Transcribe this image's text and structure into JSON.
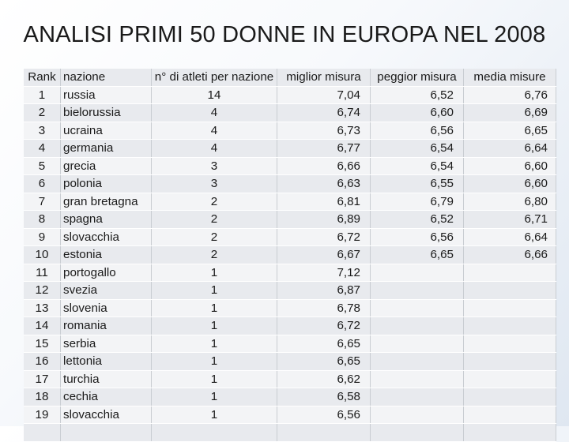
{
  "title": "ANALISI PRIMI 50 DONNE IN EUROPA NEL 2008",
  "headers": {
    "rank": "Rank",
    "nazione": "nazione",
    "n_atleti": "n° di atleti per nazione",
    "miglior": "miglior misura",
    "peggior": "peggior misura",
    "media": "media misure"
  },
  "rows": [
    {
      "rank": "1",
      "nazione": "russia",
      "n": "14",
      "miglior": "7,04",
      "peggior": "6,52",
      "media": "6,76"
    },
    {
      "rank": "2",
      "nazione": "bielorussia",
      "n": "4",
      "miglior": "6,74",
      "peggior": "6,60",
      "media": "6,69"
    },
    {
      "rank": "3",
      "nazione": "ucraina",
      "n": "4",
      "miglior": "6,73",
      "peggior": "6,56",
      "media": "6,65"
    },
    {
      "rank": "4",
      "nazione": "germania",
      "n": "4",
      "miglior": "6,77",
      "peggior": "6,54",
      "media": "6,64"
    },
    {
      "rank": "5",
      "nazione": "grecia",
      "n": "3",
      "miglior": "6,66",
      "peggior": "6,54",
      "media": "6,60"
    },
    {
      "rank": "6",
      "nazione": "polonia",
      "n": "3",
      "miglior": "6,63",
      "peggior": "6,55",
      "media": "6,60"
    },
    {
      "rank": "7",
      "nazione": "gran bretagna",
      "n": "2",
      "miglior": "6,81",
      "peggior": "6,79",
      "media": "6,80"
    },
    {
      "rank": "8",
      "nazione": "spagna",
      "n": "2",
      "miglior": "6,89",
      "peggior": "6,52",
      "media": "6,71"
    },
    {
      "rank": "9",
      "nazione": "slovacchia",
      "n": "2",
      "miglior": "6,72",
      "peggior": "6,56",
      "media": "6,64"
    },
    {
      "rank": "10",
      "nazione": "estonia",
      "n": "2",
      "miglior": "6,67",
      "peggior": "6,65",
      "media": "6,66"
    },
    {
      "rank": "11",
      "nazione": "portogallo",
      "n": "1",
      "miglior": "7,12",
      "peggior": "",
      "media": ""
    },
    {
      "rank": "12",
      "nazione": "svezia",
      "n": "1",
      "miglior": "6,87",
      "peggior": "",
      "media": ""
    },
    {
      "rank": "13",
      "nazione": "slovenia",
      "n": "1",
      "miglior": "6,78",
      "peggior": "",
      "media": ""
    },
    {
      "rank": "14",
      "nazione": "romania",
      "n": "1",
      "miglior": "6,72",
      "peggior": "",
      "media": ""
    },
    {
      "rank": "15",
      "nazione": "serbia",
      "n": "1",
      "miglior": "6,65",
      "peggior": "",
      "media": ""
    },
    {
      "rank": "16",
      "nazione": "lettonia",
      "n": "1",
      "miglior": "6,65",
      "peggior": "",
      "media": ""
    },
    {
      "rank": "17",
      "nazione": "turchia",
      "n": "1",
      "miglior": "6,62",
      "peggior": "",
      "media": ""
    },
    {
      "rank": "18",
      "nazione": "cechia",
      "n": "1",
      "miglior": "6,58",
      "peggior": "",
      "media": ""
    },
    {
      "rank": "19",
      "nazione": "slovacchia",
      "n": "1",
      "miglior": "6,56",
      "peggior": "",
      "media": ""
    },
    {
      "rank": "",
      "nazione": "",
      "n": "",
      "miglior": "",
      "peggior": "",
      "media": ""
    }
  ]
}
